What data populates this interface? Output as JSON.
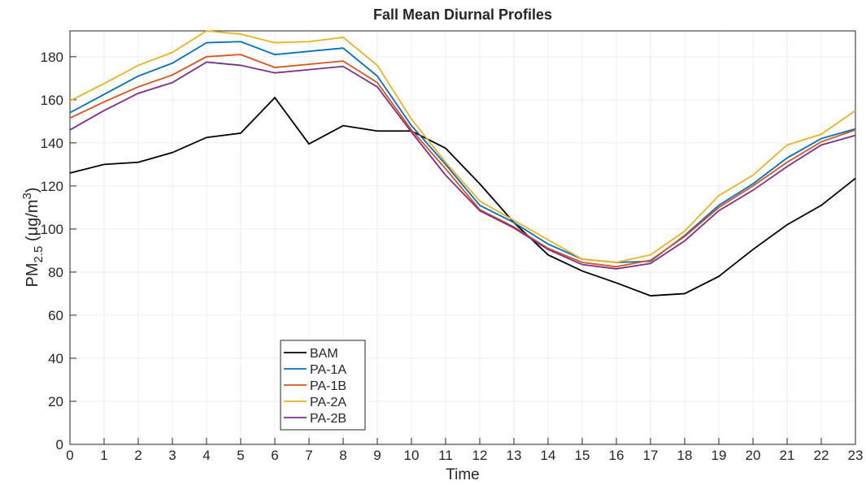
{
  "chart_data": {
    "type": "line",
    "title": "Fall Mean Diurnal Profiles",
    "xlabel": "Time",
    "ylabel": [
      "PM",
      "2.5",
      " (μg/m",
      "3",
      ")"
    ],
    "x": [
      0,
      1,
      2,
      3,
      4,
      5,
      6,
      7,
      8,
      9,
      10,
      11,
      12,
      13,
      14,
      15,
      16,
      17,
      18,
      19,
      20,
      21,
      22,
      23
    ],
    "xlim": [
      0,
      23
    ],
    "xticks": [
      0,
      1,
      2,
      3,
      4,
      5,
      6,
      7,
      8,
      9,
      10,
      11,
      12,
      13,
      14,
      15,
      16,
      17,
      18,
      19,
      20,
      21,
      22,
      23
    ],
    "ylim": [
      0,
      192
    ],
    "yticks": [
      0,
      20,
      40,
      60,
      80,
      100,
      120,
      140,
      160,
      180
    ],
    "grid": true,
    "legend": "southwest",
    "series": [
      {
        "name": "BAM",
        "color": "#000000",
        "values": [
          126,
          130,
          131,
          135.5,
          142.5,
          144.5,
          161,
          139.5,
          148,
          145.5,
          145.5,
          137.5,
          121,
          103,
          88,
          80.5,
          75,
          69,
          70,
          78,
          90.5,
          102,
          111,
          123.5
        ]
      },
      {
        "name": "PA-1A",
        "color": "#0072BD",
        "values": [
          154,
          162.5,
          171,
          177,
          186.5,
          187,
          181,
          182.5,
          184,
          171,
          148,
          130,
          111,
          103,
          93,
          86,
          84.5,
          85,
          97,
          111,
          121,
          133,
          142,
          146.5
        ]
      },
      {
        "name": "PA-1B",
        "color": "#D95319",
        "values": [
          151.5,
          159,
          166,
          171.5,
          180,
          181,
          175,
          176.5,
          178,
          168,
          146,
          128,
          109,
          101,
          91,
          84.5,
          82.5,
          85.5,
          96.5,
          110,
          120,
          131,
          140.5,
          146
        ]
      },
      {
        "name": "PA-2A",
        "color": "#EDB120",
        "values": [
          159.5,
          167.5,
          176,
          182,
          192,
          190.5,
          186.5,
          187,
          189,
          176,
          151,
          131,
          113,
          104,
          95,
          86,
          84.5,
          88,
          99,
          115.5,
          125,
          139,
          144,
          155
        ]
      },
      {
        "name": "PA-2B",
        "color": "#7E2F8E",
        "values": [
          146,
          155,
          163,
          168,
          177.5,
          176,
          172.5,
          174,
          175.5,
          166,
          145,
          125,
          108.5,
          100.5,
          90.5,
          83.5,
          81.5,
          84,
          94.5,
          108.5,
          118,
          129,
          139,
          143.5
        ]
      }
    ]
  }
}
